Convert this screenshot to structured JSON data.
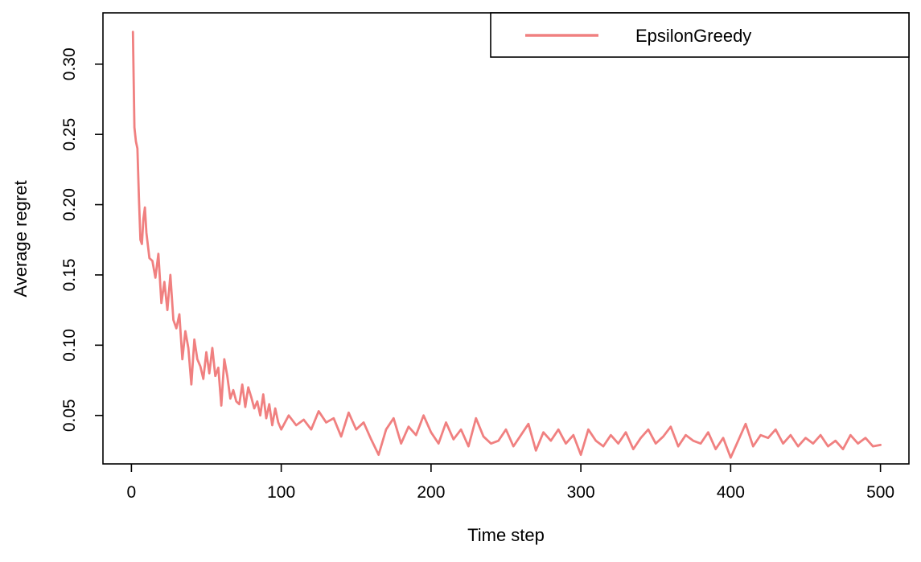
{
  "chart_data": {
    "type": "line",
    "title": "",
    "xlabel": "Time step",
    "ylabel": "Average regret",
    "xlim": [
      -19,
      519
    ],
    "ylim": [
      0.0155,
      0.3365
    ],
    "x_ticks": [
      0,
      100,
      200,
      300,
      400,
      500
    ],
    "y_ticks": [
      0.05,
      0.1,
      0.15,
      0.2,
      0.25,
      0.3
    ],
    "x_tick_labels": [
      "0",
      "100",
      "200",
      "300",
      "400",
      "500"
    ],
    "y_tick_labels": [
      "0.05",
      "0.10",
      "0.15",
      "0.20",
      "0.25",
      "0.30"
    ],
    "grid": false,
    "legend_position": "top-right",
    "series": [
      {
        "name": "EpsilonGreedy",
        "color": "#f08080",
        "x": [
          1,
          2,
          3,
          4,
          5,
          6,
          7,
          8,
          9,
          10,
          12,
          14,
          16,
          18,
          20,
          22,
          24,
          26,
          28,
          30,
          32,
          34,
          36,
          38,
          40,
          42,
          44,
          46,
          48,
          50,
          52,
          54,
          56,
          58,
          60,
          62,
          64,
          66,
          68,
          70,
          72,
          74,
          76,
          78,
          80,
          82,
          84,
          86,
          88,
          90,
          92,
          94,
          96,
          98,
          100,
          105,
          110,
          115,
          120,
          125,
          130,
          135,
          140,
          145,
          150,
          155,
          160,
          165,
          170,
          175,
          180,
          185,
          190,
          195,
          200,
          205,
          210,
          215,
          220,
          225,
          230,
          235,
          240,
          245,
          250,
          255,
          260,
          265,
          270,
          275,
          280,
          285,
          290,
          295,
          300,
          305,
          310,
          315,
          320,
          325,
          330,
          335,
          340,
          345,
          350,
          355,
          360,
          365,
          370,
          375,
          380,
          385,
          390,
          395,
          400,
          405,
          410,
          415,
          420,
          425,
          430,
          435,
          440,
          445,
          450,
          455,
          460,
          465,
          470,
          475,
          480,
          485,
          490,
          495,
          500
        ],
        "values": [
          0.323,
          0.255,
          0.245,
          0.24,
          0.205,
          0.175,
          0.172,
          0.19,
          0.198,
          0.18,
          0.162,
          0.16,
          0.148,
          0.165,
          0.13,
          0.145,
          0.125,
          0.15,
          0.118,
          0.112,
          0.122,
          0.09,
          0.11,
          0.098,
          0.072,
          0.104,
          0.09,
          0.085,
          0.076,
          0.095,
          0.08,
          0.098,
          0.078,
          0.084,
          0.057,
          0.09,
          0.078,
          0.062,
          0.068,
          0.06,
          0.058,
          0.072,
          0.056,
          0.07,
          0.063,
          0.055,
          0.06,
          0.05,
          0.065,
          0.048,
          0.058,
          0.043,
          0.055,
          0.045,
          0.04,
          0.05,
          0.043,
          0.047,
          0.04,
          0.053,
          0.045,
          0.048,
          0.035,
          0.052,
          0.04,
          0.045,
          0.033,
          0.022,
          0.04,
          0.048,
          0.03,
          0.042,
          0.036,
          0.05,
          0.038,
          0.03,
          0.045,
          0.033,
          0.04,
          0.028,
          0.048,
          0.035,
          0.03,
          0.032,
          0.04,
          0.028,
          0.036,
          0.044,
          0.025,
          0.038,
          0.032,
          0.04,
          0.03,
          0.036,
          0.022,
          0.04,
          0.032,
          0.028,
          0.036,
          0.03,
          0.038,
          0.026,
          0.034,
          0.04,
          0.03,
          0.035,
          0.042,
          0.028,
          0.036,
          0.032,
          0.03,
          0.038,
          0.026,
          0.034,
          0.02,
          0.032,
          0.044,
          0.028,
          0.036,
          0.034,
          0.04,
          0.03,
          0.036,
          0.028,
          0.034,
          0.03,
          0.036,
          0.028,
          0.032,
          0.026,
          0.036,
          0.03,
          0.034,
          0.028,
          0.029
        ]
      }
    ]
  }
}
